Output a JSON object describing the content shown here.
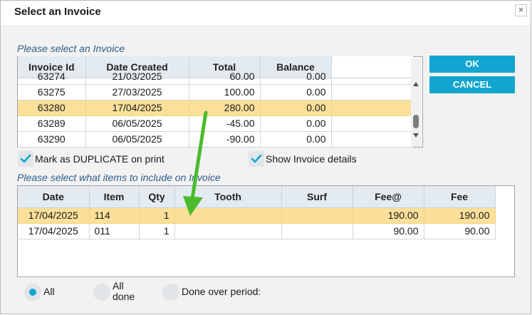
{
  "dialog": {
    "title": "Select an Invoice",
    "close_glyph": "×"
  },
  "invoices": {
    "section_label": "Please select an Invoice",
    "columns": [
      "Invoice Id",
      "Date Created",
      "Total",
      "Balance"
    ],
    "rows": [
      {
        "id": "63274",
        "date": "21/03/2025",
        "total": "60.00",
        "balance": "0.00"
      },
      {
        "id": "63275",
        "date": "27/03/2025",
        "total": "100.00",
        "balance": "0.00"
      },
      {
        "id": "63280",
        "date": "17/04/2025",
        "total": "280.00",
        "balance": "0.00"
      },
      {
        "id": "63289",
        "date": "06/05/2025",
        "total": "-45.00",
        "balance": "0.00"
      },
      {
        "id": "63290",
        "date": "06/05/2025",
        "total": "-90.00",
        "balance": "0.00"
      }
    ],
    "selected_row": 2
  },
  "buttons": {
    "ok": "OK",
    "cancel": "CANCEL"
  },
  "options": {
    "duplicate": {
      "label": "Mark as DUPLICATE on print",
      "checked": true
    },
    "show_details": {
      "label": "Show Invoice details",
      "checked": true
    }
  },
  "items": {
    "section_label": "Please select what items to include on Invoice",
    "columns": [
      "Date",
      "Item",
      "Qty",
      "Tooth",
      "Surf",
      "Fee@",
      "Fee"
    ],
    "rows": [
      {
        "date": "17/04/2025",
        "item": "114",
        "qty": "1",
        "tooth": "",
        "surf": "",
        "fee_at": "190.00",
        "fee": "190.00"
      },
      {
        "date": "17/04/2025",
        "item": "011",
        "qty": "1",
        "tooth": "",
        "surf": "",
        "fee_at": "90.00",
        "fee": "90.00"
      }
    ],
    "selected_row": 0
  },
  "filter": {
    "all": "All",
    "all_done_line1": "All",
    "all_done_line2": "done",
    "done_over_period": "Done over period:",
    "selected": "all"
  },
  "colors": {
    "accent": "#12a5cf",
    "selection": "#fbe09a",
    "annotation_arrow": "#4cbb2c"
  },
  "icons": {
    "checkbox": "check-icon",
    "annotation": "arrow-icon"
  }
}
